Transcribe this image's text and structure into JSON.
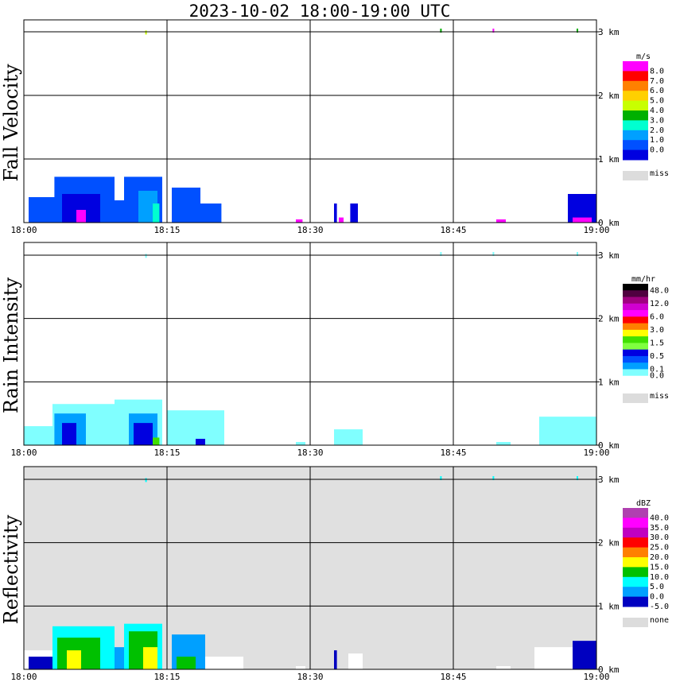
{
  "title": "2023-10-02  18:00-19:00 UTC",
  "x_ticks": [
    "18:00",
    "18:15",
    "18:30",
    "18:45",
    "19:00"
  ],
  "y_ticks": [
    "0 km",
    "1 km",
    "2 km",
    "3 km"
  ],
  "chart_data": [
    {
      "type": "heatmap",
      "name": "fall-velocity",
      "ylabel": "Fall Velocity",
      "xlim": [
        "18:00",
        "19:00"
      ],
      "ylim_km": [
        0,
        3
      ],
      "grid": true,
      "background": "#ffffff",
      "legend": {
        "unit": "m/s",
        "labels": [
          "8.0",
          "7.0",
          "6.0",
          "5.0",
          "4.0",
          "3.0",
          "2.0",
          "1.0",
          "0.0"
        ],
        "colors": [
          "#ff00ff",
          "#ff0000",
          "#ff8000",
          "#ffd000",
          "#c8ff00",
          "#00b000",
          "#00ffd0",
          "#00a0ff",
          "#0050ff",
          "#0000e0"
        ],
        "missing_label": "miss",
        "missing_color": "#dcdcdc"
      },
      "echoes": [
        {
          "t0": 0.5,
          "t1": 4.5,
          "top": 0.4,
          "color": "#0050ff"
        },
        {
          "t0": 3.2,
          "t1": 9.5,
          "top": 0.72,
          "color": "#0050ff"
        },
        {
          "t0": 4.0,
          "t1": 8.0,
          "top": 0.45,
          "color": "#0000e0"
        },
        {
          "t0": 9.5,
          "t1": 11.0,
          "top": 0.35,
          "color": "#0050ff"
        },
        {
          "t0": 10.5,
          "t1": 14.5,
          "top": 0.72,
          "color": "#0050ff"
        },
        {
          "t0": 12.0,
          "t1": 14.0,
          "top": 0.5,
          "color": "#00a0ff"
        },
        {
          "t0": 13.5,
          "t1": 14.2,
          "top": 0.3,
          "color": "#00ffd0"
        },
        {
          "t0": 5.5,
          "t1": 6.5,
          "top": 0.2,
          "color": "#ff00ff"
        },
        {
          "t0": 15.5,
          "t1": 18.5,
          "top": 0.55,
          "color": "#0050ff"
        },
        {
          "t0": 18.5,
          "t1": 20.7,
          "top": 0.3,
          "color": "#0050ff"
        },
        {
          "t0": 28.5,
          "t1": 29.2,
          "top": 0.05,
          "color": "#ff00ff"
        },
        {
          "t0": 32.5,
          "t1": 32.8,
          "top": 0.3,
          "color": "#0000e0"
        },
        {
          "t0": 34.2,
          "t1": 35.0,
          "top": 0.3,
          "color": "#0000e0"
        },
        {
          "t0": 33.0,
          "t1": 33.5,
          "top": 0.08,
          "color": "#ff00ff"
        },
        {
          "t0": 49.5,
          "t1": 50.5,
          "top": 0.05,
          "color": "#ff00ff"
        },
        {
          "t0": 57.0,
          "t1": 60.0,
          "top": 0.45,
          "color": "#0000e0"
        },
        {
          "t0": 57.5,
          "t1": 59.5,
          "top": 0.08,
          "color": "#ff00ff"
        }
      ],
      "dots": [
        {
          "t": 12.8,
          "h": 2.97,
          "color": "#c8ff00"
        },
        {
          "t": 43.7,
          "h": 3.0,
          "color": "#00b000"
        },
        {
          "t": 49.2,
          "h": 3.0,
          "color": "#ff00ff"
        },
        {
          "t": 58.0,
          "h": 3.0,
          "color": "#00b000"
        }
      ]
    },
    {
      "type": "heatmap",
      "name": "rain-intensity",
      "ylabel": "Rain Intensity",
      "xlim": [
        "18:00",
        "19:00"
      ],
      "ylim_km": [
        0,
        3
      ],
      "grid": true,
      "background": "#ffffff",
      "legend": {
        "unit": "mm/hr",
        "labels": [
          "48.0",
          "",
          "12.0",
          "",
          "6.0",
          "",
          "3.0",
          "",
          "1.5",
          "",
          "0.5",
          "",
          "0.1",
          "0.0"
        ],
        "colors": [
          "#000000",
          "#500040",
          "#a00080",
          "#d000d0",
          "#ff00ff",
          "#ff0000",
          "#ff8000",
          "#ffff00",
          "#40e000",
          "#80ff40",
          "#0000e0",
          "#0050ff",
          "#00a0ff",
          "#80ffff",
          "#ffffff"
        ],
        "missing_label": "miss",
        "missing_color": "#dcdcdc"
      },
      "echoes": [
        {
          "t0": 0.0,
          "t1": 4.5,
          "top": 0.3,
          "color": "#80ffff"
        },
        {
          "t0": 3.0,
          "t1": 9.5,
          "top": 0.65,
          "color": "#80ffff"
        },
        {
          "t0": 3.2,
          "t1": 6.5,
          "top": 0.5,
          "color": "#00a0ff"
        },
        {
          "t0": 4.0,
          "t1": 5.5,
          "top": 0.35,
          "color": "#0000e0"
        },
        {
          "t0": 9.5,
          "t1": 14.5,
          "top": 0.72,
          "color": "#80ffff"
        },
        {
          "t0": 11.0,
          "t1": 14.0,
          "top": 0.5,
          "color": "#00a0ff"
        },
        {
          "t0": 11.5,
          "t1": 13.5,
          "top": 0.35,
          "color": "#0000e0"
        },
        {
          "t0": 13.5,
          "t1": 14.2,
          "top": 0.12,
          "color": "#40e000"
        },
        {
          "t0": 15.0,
          "t1": 21.0,
          "top": 0.55,
          "color": "#80ffff"
        },
        {
          "t0": 18.0,
          "t1": 19.0,
          "top": 0.1,
          "color": "#0000e0"
        },
        {
          "t0": 28.5,
          "t1": 29.5,
          "top": 0.05,
          "color": "#80ffff"
        },
        {
          "t0": 32.5,
          "t1": 35.5,
          "top": 0.25,
          "color": "#80ffff"
        },
        {
          "t0": 49.5,
          "t1": 51.0,
          "top": 0.05,
          "color": "#80ffff"
        },
        {
          "t0": 54.0,
          "t1": 60.0,
          "top": 0.45,
          "color": "#80ffff"
        }
      ],
      "dots": [
        {
          "t": 12.8,
          "h": 2.97,
          "color": "#80ffff"
        },
        {
          "t": 43.7,
          "h": 3.0,
          "color": "#80ffff"
        },
        {
          "t": 49.2,
          "h": 3.0,
          "color": "#80ffff"
        },
        {
          "t": 58.0,
          "h": 3.0,
          "color": "#80ffff"
        }
      ]
    },
    {
      "type": "heatmap",
      "name": "reflectivity",
      "ylabel": "Reflectivity",
      "xlim": [
        "18:00",
        "19:00"
      ],
      "ylim_km": [
        0,
        3
      ],
      "grid": true,
      "background": "#e0e0e0",
      "legend": {
        "unit": "dBZ",
        "labels": [
          "40.0",
          "35.0",
          "30.0",
          "25.0",
          "20.0",
          "15.0",
          "10.0",
          "5.0",
          "0.0",
          "-5.0"
        ],
        "colors": [
          "#b040b0",
          "#ff00ff",
          "#c000c0",
          "#ff0000",
          "#ff8000",
          "#ffff00",
          "#00c000",
          "#00ffff",
          "#00a0ff",
          "#0000c0"
        ],
        "missing_label": "none",
        "missing_color": "#dcdcdc"
      },
      "echoes": [
        {
          "t0": 0.0,
          "t1": 4.5,
          "top": 0.3,
          "color": "#ffffff"
        },
        {
          "t0": 0.5,
          "t1": 3.5,
          "top": 0.2,
          "color": "#0000c0"
        },
        {
          "t0": 3.0,
          "t1": 9.5,
          "top": 0.68,
          "color": "#00ffff"
        },
        {
          "t0": 3.5,
          "t1": 8.0,
          "top": 0.5,
          "color": "#00c000"
        },
        {
          "t0": 4.5,
          "t1": 6.0,
          "top": 0.3,
          "color": "#ffff00"
        },
        {
          "t0": 9.5,
          "t1": 11.0,
          "top": 0.35,
          "color": "#00a0ff"
        },
        {
          "t0": 10.5,
          "t1": 14.5,
          "top": 0.72,
          "color": "#00ffff"
        },
        {
          "t0": 11.0,
          "t1": 14.0,
          "top": 0.6,
          "color": "#00c000"
        },
        {
          "t0": 12.5,
          "t1": 14.0,
          "top": 0.35,
          "color": "#ffff00"
        },
        {
          "t0": 15.5,
          "t1": 19.0,
          "top": 0.55,
          "color": "#00a0ff"
        },
        {
          "t0": 16.0,
          "t1": 18.0,
          "top": 0.2,
          "color": "#00c000"
        },
        {
          "t0": 19.0,
          "t1": 23.0,
          "top": 0.2,
          "color": "#ffffff"
        },
        {
          "t0": 28.5,
          "t1": 29.5,
          "top": 0.05,
          "color": "#ffffff"
        },
        {
          "t0": 32.5,
          "t1": 32.8,
          "top": 0.3,
          "color": "#0000c0"
        },
        {
          "t0": 34.0,
          "t1": 35.5,
          "top": 0.25,
          "color": "#ffffff"
        },
        {
          "t0": 49.5,
          "t1": 51.0,
          "top": 0.05,
          "color": "#ffffff"
        },
        {
          "t0": 53.5,
          "t1": 60.0,
          "top": 0.35,
          "color": "#ffffff"
        },
        {
          "t0": 57.5,
          "t1": 60.0,
          "top": 0.45,
          "color": "#0000c0"
        }
      ],
      "dots": [
        {
          "t": 12.8,
          "h": 2.97,
          "color": "#00ffff"
        },
        {
          "t": 43.7,
          "h": 3.0,
          "color": "#00ffff"
        },
        {
          "t": 49.2,
          "h": 3.0,
          "color": "#00ffff"
        },
        {
          "t": 58.0,
          "h": 3.0,
          "color": "#00ffff"
        }
      ]
    }
  ]
}
